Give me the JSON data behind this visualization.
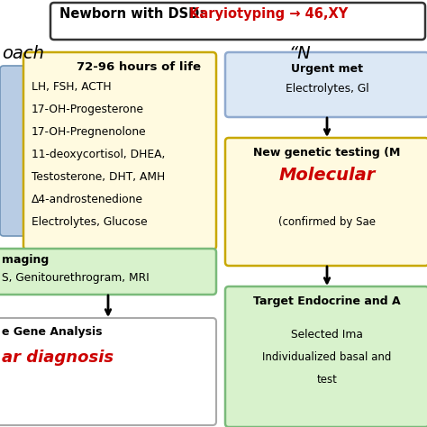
{
  "title_black": "Newborn with DSD: ",
  "title_red": "Karyiotyping → 46,XY",
  "left_heading": "oach",
  "right_heading": "“N",
  "left_box1_title": "72-96 hours of life",
  "left_box1_lines": [
    "LH, FSH, ACTH",
    "17-OH-Progesterone",
    "17-OH-Pregnenolone",
    "11-deoxycortisol, DHEA,",
    "Testosterone, DHT, AMH",
    "Δ4-androstenedione",
    "Electrolytes, Glucose"
  ],
  "left_box2_line1": "maging",
  "left_box2_line2": "S, Genitourethrogram, MRI",
  "left_box3_line1": "e Gene Analysis",
  "left_box3_line2": "ar diagnosis",
  "right_box1_line1": "Urgent met",
  "right_box1_line2": "Electrolytes, Gl",
  "right_box2_title": "New genetic testing (M",
  "right_box2_red": "Molecular",
  "right_box2_sub": "(confirmed by Sae",
  "right_box3_title": "Target Endocrine and A",
  "right_box3_line1": "Selected Ima",
  "right_box3_line2": "Individualized basal and",
  "right_box3_line3": "test",
  "bg_color": "#ffffff",
  "left_box1_bg": "#fffae0",
  "left_box1_border": "#c8a800",
  "left_box2_bg": "#d8f2cc",
  "left_box2_border": "#7aba7a",
  "left_box3_bg": "#ffffff",
  "left_box3_border": "#aaaaaa",
  "right_box1_bg": "#dce8f5",
  "right_box1_border": "#90aacf",
  "right_box2_bg": "#fffae0",
  "right_box2_border": "#c8a800",
  "right_box3_bg": "#d8f2cc",
  "right_box3_border": "#7aba7a",
  "sidebar_bg": "#b8cce4",
  "sidebar_border": "#7094b8",
  "red_color": "#cc0000",
  "top_box_border": "#333333"
}
